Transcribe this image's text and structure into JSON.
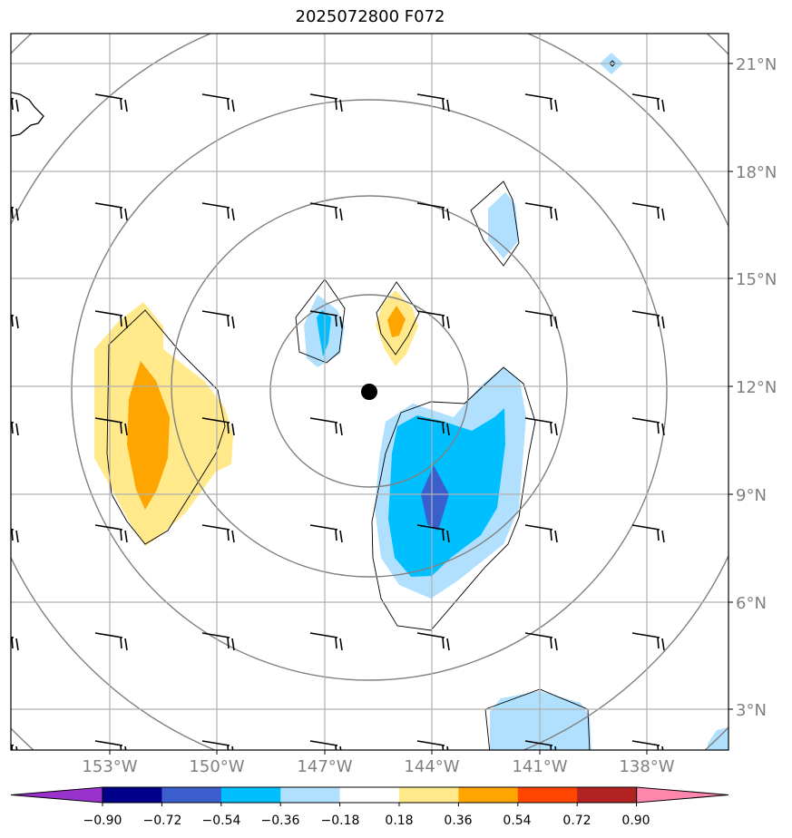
{
  "title": "2025072800 F072",
  "lat_labels": [
    "21°N",
    "18°N",
    "15°N",
    "12°N",
    "9°N",
    "6°N",
    "3°N"
  ],
  "lon_labels": [
    "153°W",
    "150°W",
    "147°W",
    "144°W",
    "141°W",
    "138°W"
  ],
  "colorbar": {
    "colors": [
      "#9932cc",
      "#00008b",
      "#3a5fcd",
      "#00bfff",
      "#b0e0fe",
      "#ffffff",
      "#ffe98a",
      "#ffa500",
      "#ff4500",
      "#b22222",
      "#ff86ad"
    ],
    "tick_labels": [
      "−0.90",
      "−0.72",
      "−0.54",
      "−0.36",
      "−0.18",
      "0.18",
      "0.36",
      "0.54",
      "0.72",
      "0.90"
    ]
  },
  "fill_colors": {
    "light_blue": "#b0e0fe",
    "blue": "#00bfff",
    "dark_blue": "#3a5fcd",
    "yellow": "#ffe98a",
    "orange": "#ffa500"
  }
}
